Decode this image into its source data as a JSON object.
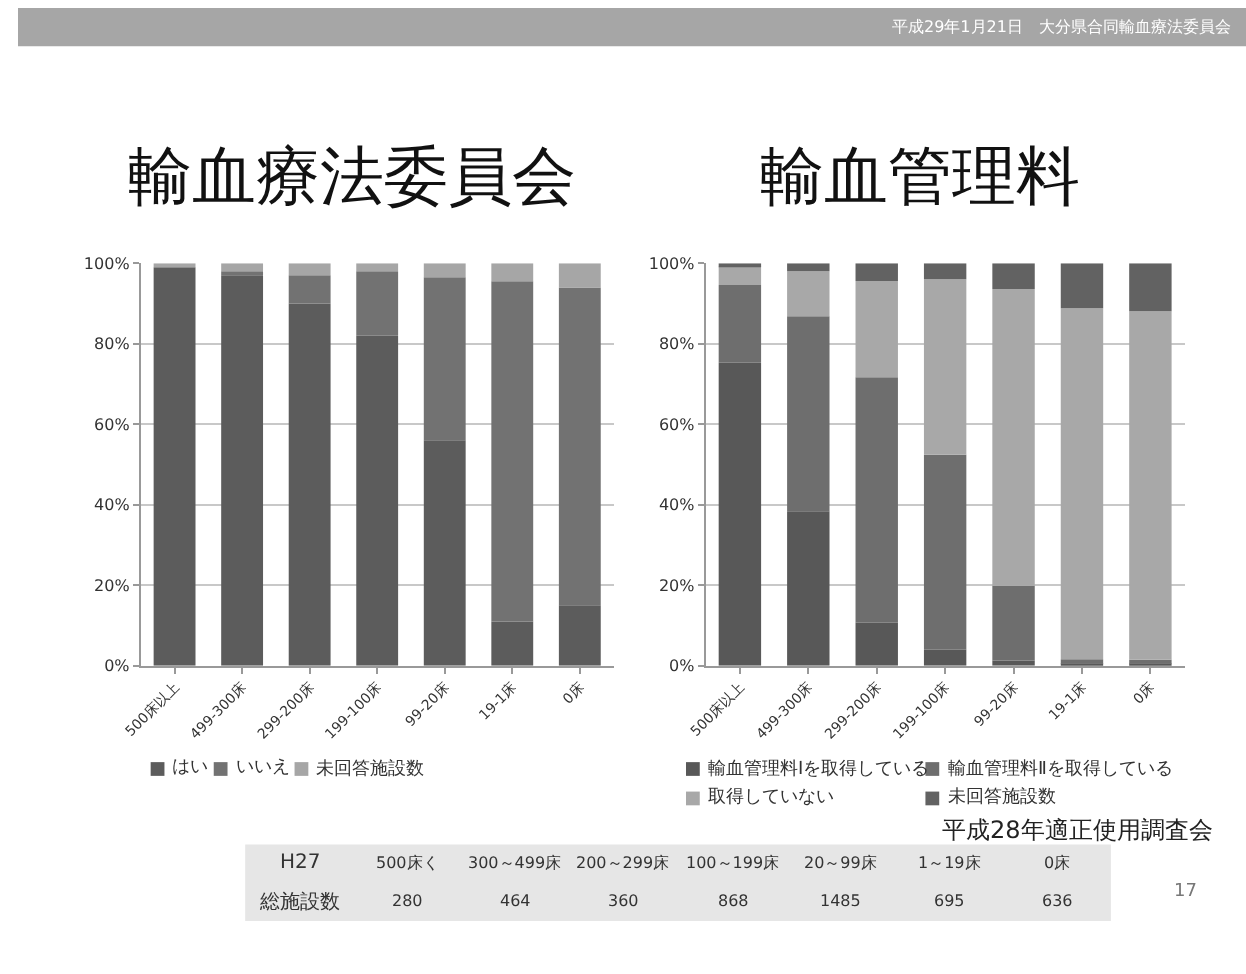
{
  "chart_data": [
    {
      "type": "bar",
      "title": "輸血療法委員会",
      "stacked": true,
      "legend": "bottom",
      "grid": "y",
      "categories": [
        "500床以上",
        "499-300床",
        "299-200床",
        "199-100床",
        "99-20床",
        "19-1床",
        "0床"
      ],
      "series": [
        {
          "name": "はい",
          "color": "#5c5c5c",
          "values": [
            99,
            97,
            90,
            82,
            56,
            11,
            15
          ]
        },
        {
          "name": "いいえ",
          "color": "#727272",
          "values": [
            0,
            1,
            7,
            16,
            40.5,
            84.5,
            79
          ]
        },
        {
          "name": "未回答施設数",
          "color": "#a6a6a6",
          "values": [
            1,
            2,
            3,
            2,
            3.5,
            4.5,
            6
          ]
        }
      ],
      "ylim": [
        0,
        100
      ],
      "yticks": [
        {
          "value": 0,
          "label": "0%"
        },
        {
          "value": 20,
          "label": "20%"
        },
        {
          "value": 40,
          "label": "40%"
        },
        {
          "value": 60,
          "label": "60%"
        },
        {
          "value": 80,
          "label": "80%"
        },
        {
          "value": 100,
          "label": "100%"
        }
      ]
    },
    {
      "type": "bar",
      "title": "輸血管理料",
      "stacked": true,
      "legend": "bottom",
      "grid": "y",
      "categories": [
        "500床以上",
        "499-300床",
        "299-200床",
        "199-100床",
        "99-20床",
        "19-1床",
        "0床"
      ],
      "series": [
        {
          "name": "輸血管理料Ⅰを取得している",
          "color": "#585858",
          "values": [
            75.3,
            38.4,
            10.7,
            4,
            1.3,
            0.5,
            0.5
          ]
        },
        {
          "name": "輸血管理料Ⅱを取得している",
          "color": "#6e6e6e",
          "values": [
            19.3,
            48.4,
            61,
            48.4,
            18.6,
            1.1,
            1
          ]
        },
        {
          "name": "取得していない",
          "color": "#a8a8a8",
          "values": [
            4.6,
            11.2,
            23.9,
            43.6,
            73.7,
            87.2,
            86.6
          ]
        },
        {
          "name": "未回答施設数",
          "color": "#626262",
          "values": [
            0.8,
            2,
            4.4,
            4,
            6.4,
            11.2,
            11.9
          ]
        }
      ],
      "ylim": [
        0,
        100
      ],
      "yticks": [
        {
          "value": 0,
          "label": "0%"
        },
        {
          "value": 20,
          "label": "20%"
        },
        {
          "value": 40,
          "label": "40%"
        },
        {
          "value": 60,
          "label": "60%"
        },
        {
          "value": 80,
          "label": "80%"
        },
        {
          "value": 100,
          "label": "100%"
        }
      ]
    },
    {
      "type": "other",
      "annotations": [
        "平成29年1月21日　大分県合同輸血療法委員会",
        "平成28年適正使用調査会",
        "17",
        "H27",
        "500床く",
        "300～499床",
        "200～299床",
        "100～199床",
        "20～99床",
        "1～19床",
        "0床",
        "総施設数",
        "280",
        "464",
        "360",
        "868",
        "1485",
        "695",
        "636"
      ]
    }
  ]
}
